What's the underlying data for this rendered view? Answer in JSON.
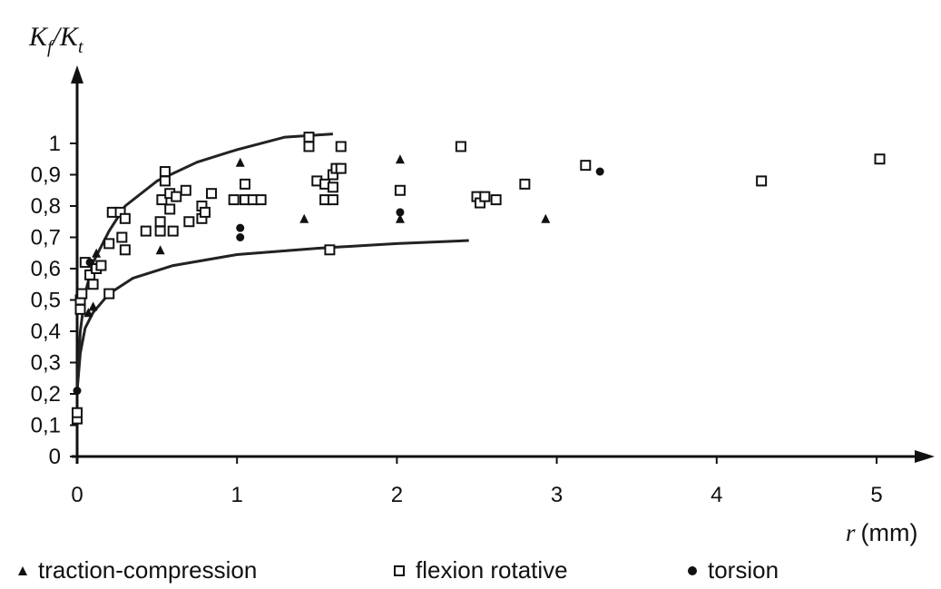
{
  "chart_data": {
    "type": "scatter",
    "ylabel_main": "K",
    "ylabel_sub1": "f",
    "ylabel_sep": "/K",
    "ylabel_sub2": "t",
    "xlabel_italic": "r",
    "xlabel_unit": "(mm)",
    "xlim": [
      0,
      5.2
    ],
    "ylim": [
      0,
      1.08
    ],
    "xticks": [
      0,
      1,
      2,
      3,
      4,
      5
    ],
    "xtick_labels": [
      "0",
      "1",
      "2",
      "3",
      "4",
      "5"
    ],
    "yticks": [
      0,
      0.1,
      0.2,
      0.3,
      0.4,
      0.5,
      0.6,
      0.7,
      0.8,
      0.9,
      1.0
    ],
    "ytick_labels": [
      "0",
      "0,1",
      "0,2",
      "0,3",
      "0,4",
      "0,5",
      "0,6",
      "0,7",
      "0,8",
      "0,9",
      "1"
    ],
    "grid": false,
    "legend_placement": "bottom",
    "series": [
      {
        "name": "traction-compression",
        "marker": "triangle",
        "points": [
          [
            0.07,
            0.46
          ],
          [
            0.1,
            0.48
          ],
          [
            0.12,
            0.65
          ],
          [
            0.52,
            0.66
          ],
          [
            1.02,
            0.94
          ],
          [
            1.42,
            0.76
          ],
          [
            2.02,
            0.95
          ],
          [
            2.02,
            0.76
          ],
          [
            2.93,
            0.76
          ]
        ]
      },
      {
        "name": "flexion rotative",
        "marker": "square",
        "points": [
          [
            0,
            0.12
          ],
          [
            0,
            0.14
          ],
          [
            0.02,
            0.47
          ],
          [
            0.02,
            0.5
          ],
          [
            0.03,
            0.52
          ],
          [
            0.05,
            0.62
          ],
          [
            0.08,
            0.58
          ],
          [
            0.1,
            0.55
          ],
          [
            0.12,
            0.6
          ],
          [
            0.15,
            0.61
          ],
          [
            0.2,
            0.68
          ],
          [
            0.2,
            0.52
          ],
          [
            0.22,
            0.78
          ],
          [
            0.27,
            0.78
          ],
          [
            0.3,
            0.76
          ],
          [
            0.28,
            0.7
          ],
          [
            0.3,
            0.66
          ],
          [
            0.43,
            0.72
          ],
          [
            0.52,
            0.72
          ],
          [
            0.52,
            0.75
          ],
          [
            0.53,
            0.82
          ],
          [
            0.55,
            0.88
          ],
          [
            0.55,
            0.91
          ],
          [
            0.58,
            0.79
          ],
          [
            0.58,
            0.84
          ],
          [
            0.6,
            0.72
          ],
          [
            0.62,
            0.83
          ],
          [
            0.68,
            0.85
          ],
          [
            0.7,
            0.75
          ],
          [
            0.78,
            0.76
          ],
          [
            0.78,
            0.8
          ],
          [
            0.8,
            0.78
          ],
          [
            0.84,
            0.84
          ],
          [
            0.98,
            0.82
          ],
          [
            1.05,
            0.82
          ],
          [
            1.05,
            0.87
          ],
          [
            1.1,
            0.82
          ],
          [
            1.15,
            0.82
          ],
          [
            1.45,
            0.99
          ],
          [
            1.45,
            1.02
          ],
          [
            1.5,
            0.88
          ],
          [
            1.55,
            0.87
          ],
          [
            1.55,
            0.82
          ],
          [
            1.58,
            0.66
          ],
          [
            1.6,
            0.82
          ],
          [
            1.6,
            0.86
          ],
          [
            1.6,
            0.9
          ],
          [
            1.62,
            0.92
          ],
          [
            1.65,
            0.99
          ],
          [
            1.65,
            0.92
          ],
          [
            2.02,
            0.85
          ],
          [
            2.4,
            0.99
          ],
          [
            2.5,
            0.83
          ],
          [
            2.52,
            0.81
          ],
          [
            2.55,
            0.83
          ],
          [
            2.62,
            0.82
          ],
          [
            2.8,
            0.87
          ],
          [
            3.18,
            0.93
          ],
          [
            4.28,
            0.88
          ],
          [
            5.02,
            0.95
          ]
        ]
      },
      {
        "name": "torsion",
        "marker": "dot",
        "points": [
          [
            0,
            0.21
          ],
          [
            0.08,
            0.62
          ],
          [
            1.02,
            0.7
          ],
          [
            1.02,
            0.73
          ],
          [
            2.02,
            0.78
          ],
          [
            3.27,
            0.91
          ]
        ]
      }
    ],
    "curves": [
      {
        "description_free": true,
        "points": [
          [
            0,
            0.21
          ],
          [
            0.02,
            0.4
          ],
          [
            0.05,
            0.52
          ],
          [
            0.1,
            0.62
          ],
          [
            0.2,
            0.72
          ],
          [
            0.3,
            0.8
          ],
          [
            0.5,
            0.88
          ],
          [
            0.75,
            0.94
          ],
          [
            1.0,
            0.98
          ],
          [
            1.3,
            1.02
          ],
          [
            1.6,
            1.03
          ]
        ]
      },
      {
        "points": [
          [
            0,
            0.21
          ],
          [
            0.02,
            0.33
          ],
          [
            0.05,
            0.41
          ],
          [
            0.1,
            0.46
          ],
          [
            0.2,
            0.52
          ],
          [
            0.35,
            0.57
          ],
          [
            0.6,
            0.61
          ],
          [
            1.0,
            0.645
          ],
          [
            1.5,
            0.665
          ],
          [
            2.0,
            0.68
          ],
          [
            2.45,
            0.69
          ]
        ]
      }
    ]
  }
}
